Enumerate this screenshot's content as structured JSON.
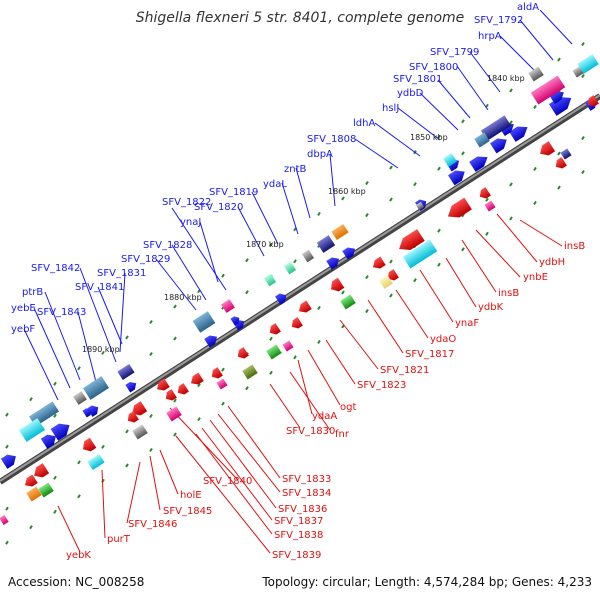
{
  "title": "Shigella flexneri 5 str. 8401, complete genome",
  "accession": "Accession: NC_008258",
  "topology": "Topology: circular; Length: 4,574,284 bp; Genes: 4,233",
  "colors": {
    "forward_label": "#1a1aee",
    "reverse_label": "#dd1111",
    "backbone": "#777777",
    "tick": "#2a8a2a"
  },
  "kbp_ticks": [
    "1840 kbp",
    "1850 kbp",
    "1860 kbp",
    "1870 kbp",
    "1880 kbp",
    "1890 kbp"
  ],
  "forward_labels": [
    "aldA",
    "SFV_1792",
    "hrpA",
    "SFV_1799",
    "SFV_1800",
    "SFV_1801",
    "ydbD",
    "hslJ",
    "ldhA",
    "SFV_1808",
    "dbpA",
    "zntB",
    "ydaL",
    "SFV_1819",
    "SFV_1820",
    "SFV_1822",
    "ynaJ",
    "SFV_1828",
    "SFV_1829",
    "SFV_1831",
    "SFV_1841",
    "SFV_1842",
    "ptrB",
    "yebE",
    "SFV_1843",
    "yebF"
  ],
  "reverse_labels": [
    "insB",
    "ydbH",
    "ynbE",
    "insB",
    "ydbK",
    "ynaF",
    "ydaO",
    "SFV_1817",
    "SFV_1821",
    "SFV_1823",
    "ogt",
    "ydaA",
    "fnr",
    "SFV_1830",
    "SFV_1833",
    "SFV_1834",
    "SFV_1836",
    "SFV_1837",
    "SFV_1838",
    "SFV_1839",
    "SFV_1840",
    "holE",
    "SFV_1845",
    "SFV_1846",
    "purT",
    "yebK"
  ]
}
